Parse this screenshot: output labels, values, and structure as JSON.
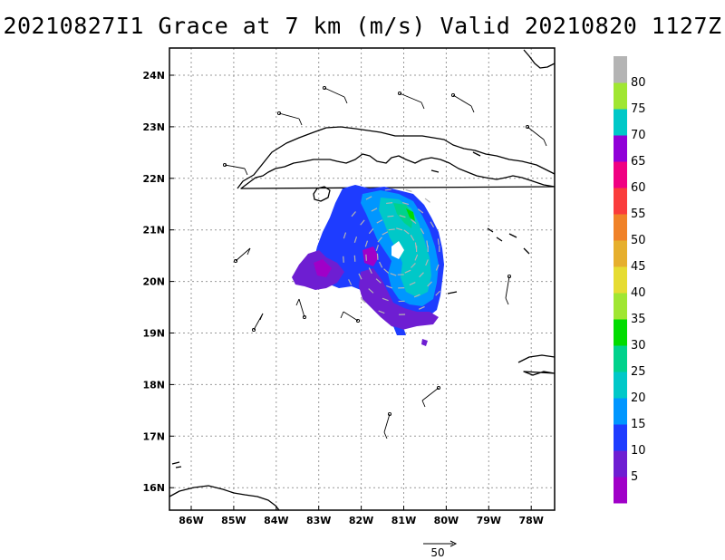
{
  "title": "20210827I1 Grace at 7 km (m/s) Valid 20210820 1127Z",
  "map": {
    "lat_labels": [
      "24N",
      "23N",
      "22N",
      "21N",
      "20N",
      "19N",
      "18N",
      "17N",
      "16N"
    ],
    "lon_labels": [
      "86W",
      "85W",
      "84W",
      "83W",
      "82W",
      "81W",
      "80W",
      "79W",
      "78W"
    ],
    "grid": "dotted",
    "projection": "lat-lon",
    "bounds": {
      "lon_min": -86.5,
      "lon_max": -77.6,
      "lat_min": 15.5,
      "lat_max": 24.4
    }
  },
  "colorbar": {
    "labels": [
      "5",
      "10",
      "15",
      "20",
      "25",
      "30",
      "35",
      "40",
      "45",
      "50",
      "55",
      "60",
      "65",
      "70",
      "75",
      "80"
    ],
    "colors": [
      "#a000c8",
      "#6e1ed2",
      "#1e3cff",
      "#0096ff",
      "#00c8c8",
      "#00d28c",
      "#00dc00",
      "#a0e632",
      "#e6dc32",
      "#e6af2d",
      "#f08228",
      "#fa3c3c",
      "#f00082",
      "#9000d8",
      "#00c8c8",
      "#a0e632",
      "#b4b4b4"
    ]
  },
  "scale_vector": {
    "label": "50"
  },
  "colors": {
    "coast": "#000000",
    "grid": "#999999",
    "barb": "#000000",
    "vector": "#b4b4b4"
  }
}
